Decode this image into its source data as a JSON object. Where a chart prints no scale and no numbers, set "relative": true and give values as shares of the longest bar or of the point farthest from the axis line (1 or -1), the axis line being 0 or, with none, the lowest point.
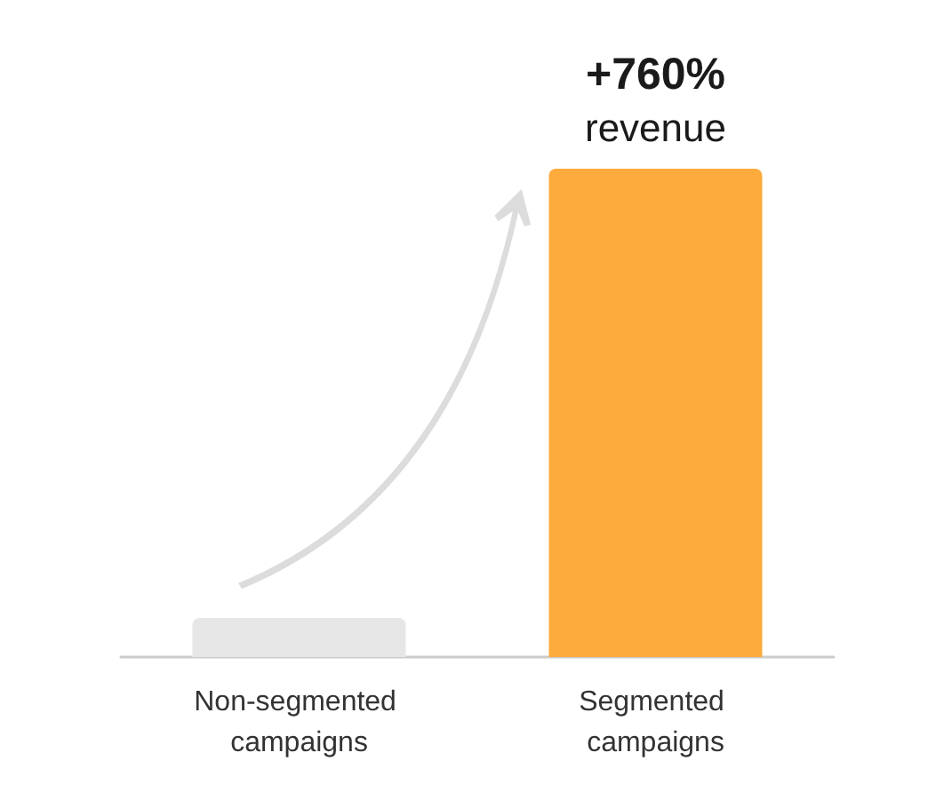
{
  "chart_data": {
    "type": "bar",
    "relative": true,
    "categories": [
      "Non-segmented campaigns",
      "Segmented campaigns"
    ],
    "values": [
      0.08,
      1
    ],
    "colors": [
      "#e6e6e6",
      "#fdab3d"
    ],
    "annotations": [
      {
        "text": "+760%",
        "x": "Segmented campaigns",
        "y": 1
      },
      {
        "text": "revenue",
        "x": "Segmented campaigns",
        "y": 1
      }
    ]
  }
}
